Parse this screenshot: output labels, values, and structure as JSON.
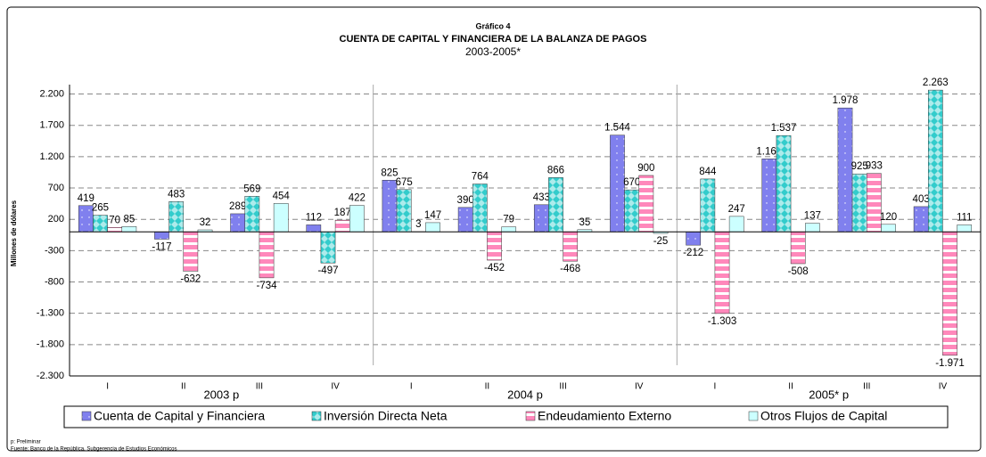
{
  "chart_data": {
    "type": "bar",
    "title_prefix": "Gráfico 4",
    "title": "CUENTA DE CAPITAL Y FINANCIERA DE LA BALANZA DE PAGOS",
    "subtitle": "2003-2005*",
    "y_label": "Millones de dólares",
    "categories": [
      "I",
      "II",
      "III",
      "IV",
      "I",
      "II",
      "III",
      "IV",
      "I",
      "II",
      "III",
      "IV"
    ],
    "groups": [
      "2003 p",
      "2004 p",
      "2005* p"
    ],
    "series": [
      {
        "name": "Cuenta de Capital y Financiera",
        "color": "#8080ee",
        "pattern": "dots",
        "values": [
          419,
          -117,
          289,
          112,
          825,
          390,
          433,
          1544,
          -212,
          1165,
          1978,
          403
        ],
        "value_labels": [
          "419",
          "-117",
          "289",
          "112",
          "825",
          "390",
          "433",
          "1.544",
          "-212",
          "1.165",
          "1.978",
          "403"
        ]
      },
      {
        "name": "Inversión Directa Neta",
        "color": "#33cccc",
        "pattern": "diamonds",
        "values": [
          265,
          483,
          569,
          -497,
          675,
          764,
          866,
          670,
          844,
          1537,
          925,
          2263
        ],
        "value_labels": [
          "265",
          "483",
          "569",
          "-497",
          "675",
          "764",
          "866",
          "670",
          "844",
          "1.537",
          "925",
          "2.263"
        ]
      },
      {
        "name": "Endeudamiento Externo",
        "color": "#ff88bb",
        "pattern": "stripes",
        "values": [
          70,
          -632,
          -734,
          187,
          3,
          -452,
          -468,
          900,
          -1303,
          -508,
          933,
          -1971
        ],
        "value_labels": [
          "70",
          "-632",
          "-734",
          "187",
          "3",
          "-452",
          "-468",
          "900",
          "-1.303",
          "-508",
          "933",
          "-1.971"
        ]
      },
      {
        "name": "Otros Flujos de Capital",
        "color": "#ccffff",
        "pattern": "plain",
        "values": [
          85,
          32,
          454,
          422,
          147,
          79,
          35,
          -25,
          247,
          137,
          120,
          111
        ],
        "value_labels": [
          "85",
          "32",
          "454",
          "422",
          "147",
          "79",
          "35",
          "-25",
          "247",
          "137",
          "120",
          "111"
        ]
      }
    ],
    "ylim": [
      -2300,
      2350
    ],
    "yticks": [
      {
        "value": -2300,
        "label": "-2.300"
      },
      {
        "value": -1800,
        "label": "-1.800"
      },
      {
        "value": -1300,
        "label": "-1.300"
      },
      -800,
      -300,
      200,
      700,
      {
        "value": 1200,
        "label": "1.200"
      },
      {
        "value": 1700,
        "label": "1.700"
      },
      {
        "value": 2200,
        "label": "2.200"
      }
    ],
    "grid": true,
    "legend": "bottom",
    "notes": [
      "p: Preliminar",
      "Fuente: Banco de la República, Subgerencia de Estudios Económicos"
    ]
  }
}
